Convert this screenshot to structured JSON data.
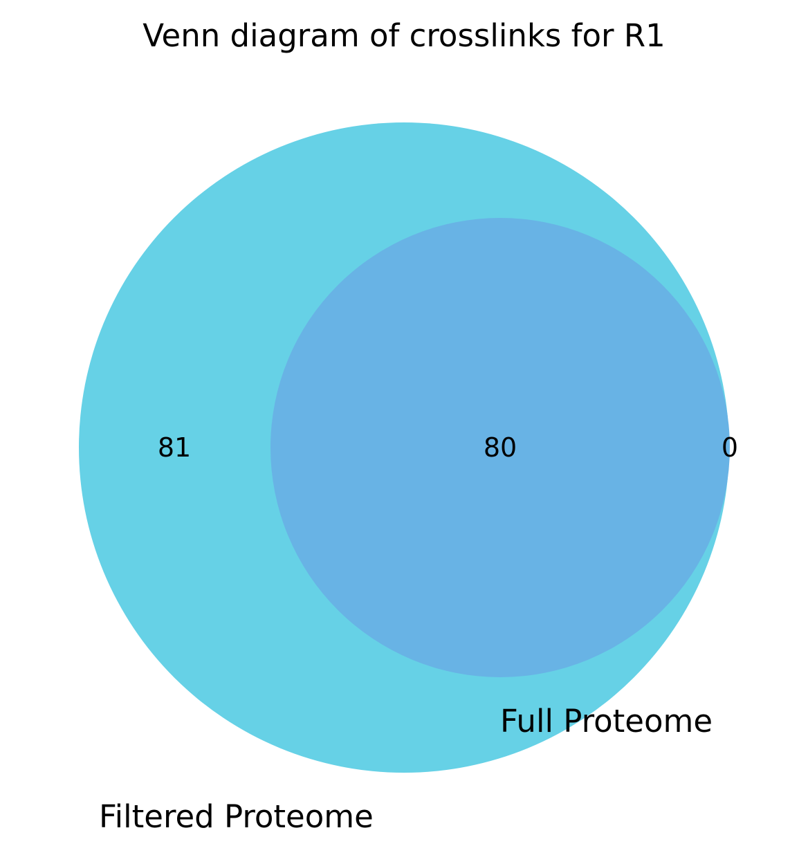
{
  "title": "Venn diagram of crosslinks for R1",
  "sets": [
    {
      "name": "Filtered Proteome",
      "color": "#66d1e6"
    },
    {
      "name": "Full Proteome",
      "color": "#68b3e5"
    }
  ],
  "regions": {
    "filtered_only": "81",
    "intersection": "80",
    "full_only": "0"
  }
}
